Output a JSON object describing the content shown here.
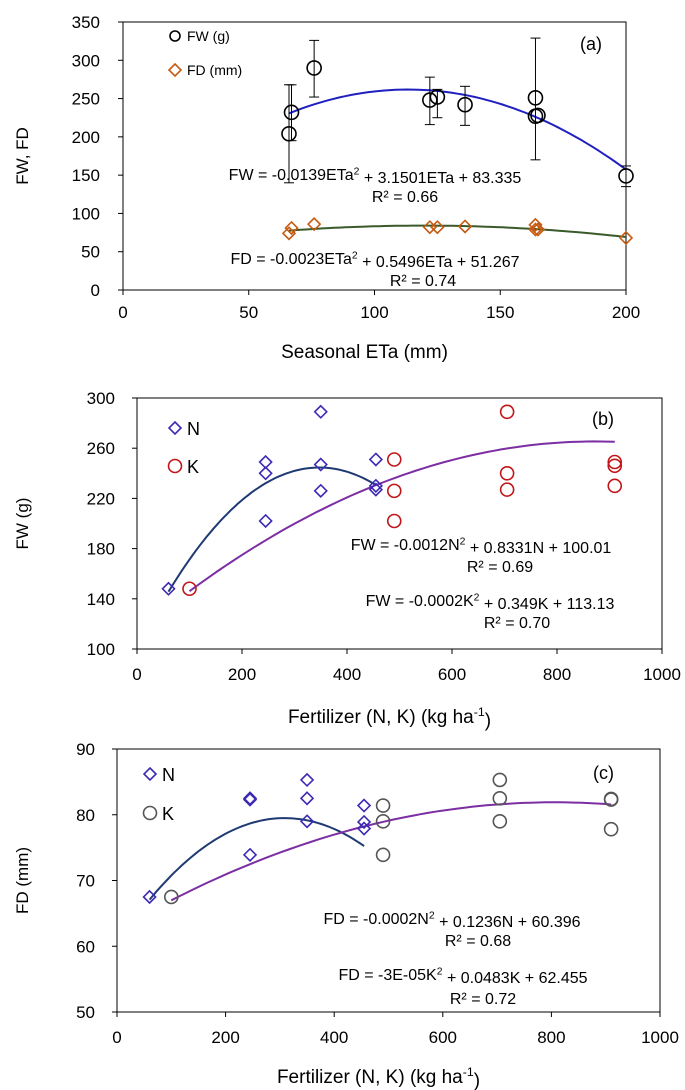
{
  "chart_data": [
    {
      "type": "scatter",
      "panel_label": "(a)",
      "xlabel": "Seasonal ETa (mm)",
      "ylabel": "FW, FD",
      "xlim": [
        0,
        200
      ],
      "ylim": [
        0,
        350
      ],
      "xticks": [
        "0",
        "50",
        "100",
        "150",
        "200"
      ],
      "yticks": [
        "0",
        "50",
        "100",
        "150",
        "200",
        "250",
        "300",
        "350"
      ],
      "legend": [
        "FW (g)",
        "FD (mm)"
      ],
      "legend_position": "top-left",
      "grid": false,
      "colors": {
        "fw": "#000000",
        "fd": "#c55a11",
        "fw_trend": "#2020c0",
        "fd_trend": "#3a5a2a"
      },
      "series": [
        {
          "name": "FW (g)",
          "marker": "circle",
          "x": [
            66,
            67,
            76,
            122,
            125,
            136,
            164,
            164,
            165,
            200
          ],
          "y": [
            204,
            232,
            290,
            248,
            252,
            242,
            251,
            227,
            228,
            149
          ],
          "error": [
            [
              66,
              140,
              268
            ],
            [
              67,
              195,
              268
            ],
            [
              76,
              252,
              326
            ],
            [
              122,
              216,
              278
            ],
            [
              125,
              225,
              262
            ],
            [
              136,
              215,
              266
            ],
            [
              164,
              170,
              329
            ],
            [
              200,
              135,
              162
            ]
          ]
        },
        {
          "name": "FD (mm)",
          "marker": "diamond",
          "x": [
            66,
            67,
            76,
            122,
            125,
            136,
            164,
            164,
            165,
            200
          ],
          "y": [
            74,
            81,
            86,
            82,
            82,
            83,
            85,
            79,
            79,
            68
          ]
        }
      ],
      "trendlines": [
        {
          "coef": [
            -0.0139,
            3.1501,
            83.335
          ],
          "x_range": [
            66,
            200
          ],
          "color_key": "fw_trend"
        },
        {
          "coef": [
            -0.0023,
            0.5496,
            51.267
          ],
          "x_range": [
            66,
            200
          ],
          "color_key": "fd_trend"
        }
      ],
      "annotations": [
        {
          "text": "FW = -0.0139ETa",
          "sup": "2",
          "tail": " + 3.1501ETa + 83.335"
        },
        {
          "text": "R² = 0.66"
        },
        {
          "text": "FD = -0.0023ETa",
          "sup": "2",
          "tail": " + 0.5496ETa + 51.267"
        },
        {
          "text": "R² = 0.74"
        }
      ]
    },
    {
      "type": "scatter",
      "panel_label": "(b)",
      "xlabel": "Fertilizer (N, K) (kg ha",
      "xlabel_sup": "-1",
      "xlabel_tail": ")",
      "ylabel": "FW (g)",
      "xlim": [
        0,
        1000
      ],
      "ylim": [
        100,
        300
      ],
      "xticks": [
        "0",
        "200",
        "400",
        "600",
        "800",
        "1000"
      ],
      "yticks": [
        "100",
        "140",
        "180",
        "220",
        "260",
        "300"
      ],
      "legend": [
        "N",
        "K"
      ],
      "legend_position": "top-left",
      "grid": false,
      "colors": {
        "n": "#3c2ab5",
        "k": "#c0161a",
        "n_trend": "#1f3a73",
        "k_trend": "#7c2ea3"
      },
      "series": [
        {
          "name": "N",
          "marker": "diamond",
          "x": [
            60,
            245,
            245,
            245,
            350,
            350,
            350,
            455,
            455,
            455
          ],
          "y": [
            148,
            249,
            240,
            202,
            289,
            247,
            226,
            251,
            230,
            227
          ]
        },
        {
          "name": "K",
          "marker": "circle",
          "x": [
            100,
            490,
            490,
            490,
            705,
            705,
            705,
            910,
            910,
            910
          ],
          "y": [
            148,
            251,
            226,
            202,
            289,
            240,
            227,
            249,
            246,
            230
          ]
        }
      ],
      "trendlines": [
        {
          "coef": [
            -0.0012,
            0.8331,
            100.01
          ],
          "x_range": [
            60,
            455
          ],
          "color_key": "n_trend"
        },
        {
          "coef": [
            -0.0002,
            0.349,
            113.13
          ],
          "x_range": [
            100,
            910
          ],
          "color_key": "k_trend"
        }
      ],
      "annotations": [
        {
          "text": "FW = -0.0012N",
          "sup": "2",
          "tail": " + 0.8331N + 100.01"
        },
        {
          "text": "R² = 0.69"
        },
        {
          "text": "FW = -0.0002K",
          "sup": "2",
          "tail": " + 0.349K + 113.13"
        },
        {
          "text": "R² = 0.70"
        }
      ]
    },
    {
      "type": "scatter",
      "panel_label": "(c)",
      "xlabel": "Fertilizer (N, K) (kg ha",
      "xlabel_sup": "-1",
      "xlabel_tail": ")",
      "ylabel": "FD (mm)",
      "xlim": [
        0,
        1000
      ],
      "ylim": [
        50,
        90
      ],
      "xticks": [
        "0",
        "200",
        "400",
        "600",
        "800",
        "1000"
      ],
      "yticks": [
        "50",
        "60",
        "70",
        "80",
        "90"
      ],
      "legend": [
        "N",
        "K"
      ],
      "legend_position": "top-left",
      "grid": false,
      "colors": {
        "n": "#3c2ab5",
        "k": "#555555",
        "n_trend": "#1f3a73",
        "k_trend": "#7c2ea3"
      },
      "series": [
        {
          "name": "N",
          "marker": "diamond",
          "x": [
            60,
            245,
            245,
            245,
            350,
            350,
            350,
            455,
            455,
            455
          ],
          "y": [
            67.5,
            82.5,
            82.3,
            73.9,
            85.3,
            82.5,
            79.0,
            81.4,
            78.9,
            77.9
          ]
        },
        {
          "name": "K",
          "marker": "circle",
          "x": [
            100,
            490,
            490,
            490,
            705,
            705,
            705,
            910,
            910,
            910
          ],
          "y": [
            67.5,
            81.4,
            79.0,
            73.9,
            85.3,
            82.5,
            79.0,
            82.4,
            82.3,
            77.8
          ]
        }
      ],
      "trendlines": [
        {
          "coef": [
            -0.0002,
            0.1236,
            60.396
          ],
          "x_range": [
            60,
            455
          ],
          "color_key": "n_trend"
        },
        {
          "coef": [
            -3e-05,
            0.0483,
            62.455
          ],
          "x_range": [
            100,
            910
          ],
          "color_key": "k_trend"
        }
      ],
      "annotations": [
        {
          "text": "FD = -0.0002N",
          "sup": "2",
          "tail": " + 0.1236N + 60.396"
        },
        {
          "text": "R² = 0.68"
        },
        {
          "text": "FD = -3E-05K",
          "sup": "2",
          "tail": " + 0.0483K + 62.455"
        },
        {
          "text": "R² = 0.72"
        }
      ]
    }
  ]
}
